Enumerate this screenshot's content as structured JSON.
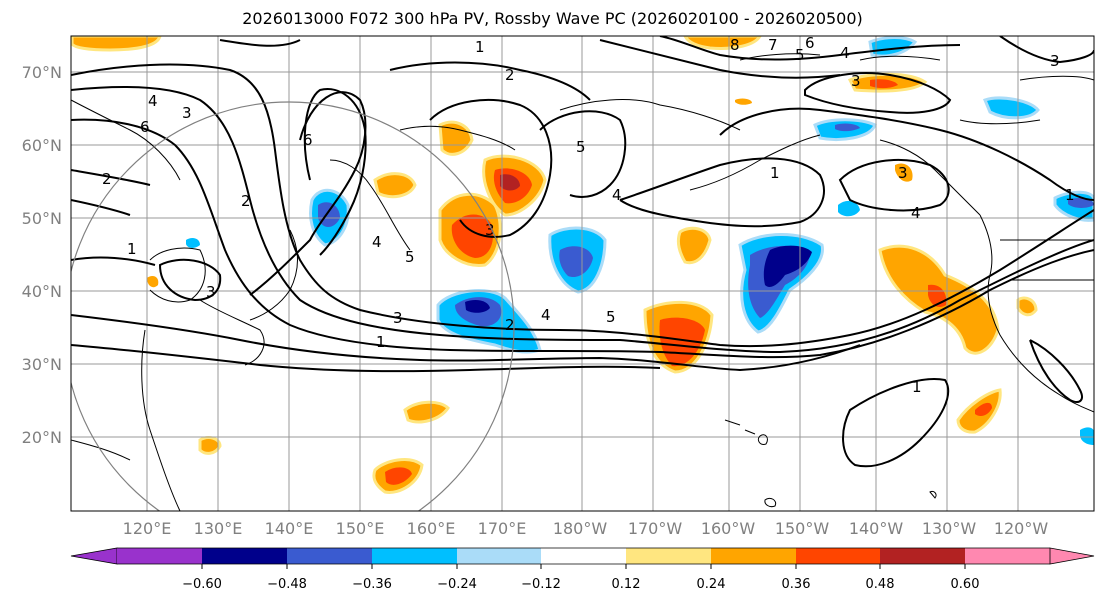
{
  "title": "2026013000 F072 300 hPa PV, Rossby Wave PC (2026020100 - 2026020500)",
  "map": {
    "lat_labels": [
      "70°N",
      "60°N",
      "50°N",
      "40°N",
      "30°N",
      "20°N"
    ],
    "lon_labels": [
      "120°E",
      "130°E",
      "140°E",
      "150°E",
      "160°E",
      "170°E",
      "180°W",
      "170°W",
      "160°W",
      "150°W",
      "140°W",
      "130°W",
      "120°W"
    ],
    "contour_labels": [
      "1",
      "2",
      "3",
      "4",
      "5",
      "6",
      "7",
      "8"
    ],
    "colors": {
      "grid": "#999999",
      "coast": "#000000",
      "label": "#808080"
    }
  },
  "colorbar": {
    "ticks": [
      "−0.60",
      "−0.48",
      "−0.36",
      "−0.24",
      "−0.12",
      "0.12",
      "0.24",
      "0.36",
      "0.48",
      "0.60"
    ],
    "colors": [
      "#9932cc",
      "#00008b",
      "#3a5bd0",
      "#00bfff",
      "#aadcf8",
      "#ffffff",
      "#ffe680",
      "#ffa500",
      "#ff4500",
      "#b22222",
      "#ff88b0"
    ]
  }
}
